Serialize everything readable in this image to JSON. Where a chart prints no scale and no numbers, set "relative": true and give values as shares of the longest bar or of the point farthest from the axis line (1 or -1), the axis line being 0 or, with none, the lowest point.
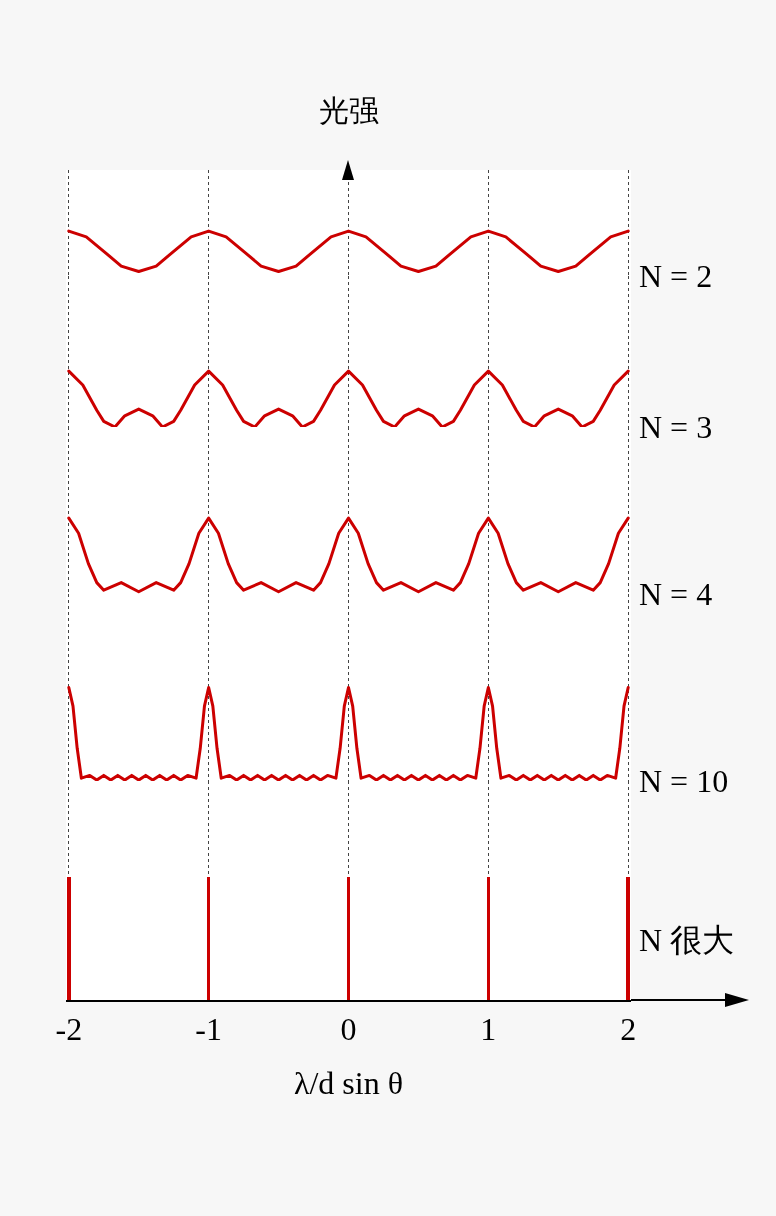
{
  "chart_data": [
    {
      "type": "line",
      "ylabel": "光强",
      "relative": true,
      "xlim": [
        -2.02,
        2.02
      ],
      "xticks": [
        -2,
        -1,
        0,
        1,
        2
      ],
      "grid": "x",
      "tick_labels": false,
      "series": [
        {
          "name": "N = 2",
          "color": "#cc0000",
          "x": [
            -2,
            -1.875,
            -1.75,
            -1.625,
            -1.5,
            -1.375,
            -1.25,
            -1.125,
            -1,
            -0.875,
            -0.75,
            -0.625,
            -0.5,
            -0.375,
            -0.25,
            -0.125,
            0,
            0.125,
            0.25,
            0.375,
            0.5,
            0.625,
            0.75,
            0.875,
            1,
            1.125,
            1.25,
            1.375,
            1.5,
            1.625,
            1.75,
            1.875,
            2
          ],
          "values": [
            1,
            0.87,
            0.55,
            0.22,
            0.1,
            0.22,
            0.55,
            0.87,
            1,
            0.87,
            0.55,
            0.22,
            0.1,
            0.22,
            0.55,
            0.87,
            1,
            0.87,
            0.55,
            0.22,
            0.1,
            0.22,
            0.55,
            0.87,
            1,
            0.87,
            0.55,
            0.22,
            0.1,
            0.22,
            0.55,
            0.87,
            1
          ]
        }
      ]
    },
    {
      "type": "line",
      "relative": true,
      "xlim": [
        -2.02,
        2.02
      ],
      "xticks": [
        -2,
        -1,
        0,
        1,
        2
      ],
      "grid": "x",
      "tick_labels": false,
      "series": [
        {
          "name": "N = 3",
          "color": "#cc0000",
          "x": [
            -2,
            -1.9,
            -1.8,
            -1.75,
            -1.67,
            -1.6,
            -1.5,
            -1.4,
            -1.33,
            -1.25,
            -1.2,
            -1.1,
            -1,
            -0.9,
            -0.8,
            -0.75,
            -0.67,
            -0.6,
            -0.5,
            -0.4,
            -0.33,
            -0.25,
            -0.2,
            -0.1,
            0,
            0.1,
            0.2,
            0.25,
            0.33,
            0.4,
            0.5,
            0.6,
            0.67,
            0.75,
            0.8,
            0.9,
            1,
            1.1,
            1.2,
            1.25,
            1.33,
            1.4,
            1.5,
            1.6,
            1.67,
            1.75,
            1.8,
            1.9,
            2
          ],
          "values": [
            1,
            0.75,
            0.3,
            0.1,
            0,
            0.2,
            0.32,
            0.2,
            0,
            0.1,
            0.3,
            0.75,
            1,
            0.75,
            0.3,
            0.1,
            0,
            0.2,
            0.32,
            0.2,
            0,
            0.1,
            0.3,
            0.75,
            1,
            0.75,
            0.3,
            0.1,
            0,
            0.2,
            0.32,
            0.2,
            0,
            0.1,
            0.3,
            0.75,
            1,
            0.75,
            0.3,
            0.1,
            0,
            0.2,
            0.32,
            0.2,
            0,
            0.1,
            0.3,
            0.75,
            1
          ]
        }
      ]
    },
    {
      "type": "line",
      "relative": true,
      "xlim": [
        -2.02,
        2.02
      ],
      "xticks": [
        -2,
        -1,
        0,
        1,
        2
      ],
      "grid": "x",
      "tick_labels": false,
      "series": [
        {
          "name": "N = 4",
          "color": "#cc0000",
          "x": [
            -2,
            -1.93,
            -1.86,
            -1.8,
            -1.75,
            -1.625,
            -1.5,
            -1.375,
            -1.25,
            -1.2,
            -1.14,
            -1.07,
            -1,
            -0.93,
            -0.86,
            -0.8,
            -0.75,
            -0.625,
            -0.5,
            -0.375,
            -0.25,
            -0.2,
            -0.14,
            -0.07,
            0,
            0.07,
            0.14,
            0.2,
            0.25,
            0.375,
            0.5,
            0.625,
            0.75,
            0.8,
            0.86,
            0.93,
            1,
            1.07,
            1.14,
            1.2,
            1.25,
            1.375,
            1.5,
            1.625,
            1.75,
            1.8,
            1.86,
            1.93,
            2
          ],
          "values": [
            1,
            0.8,
            0.4,
            0.15,
            0.05,
            0.15,
            0.03,
            0.15,
            0.05,
            0.15,
            0.4,
            0.8,
            1,
            0.8,
            0.4,
            0.15,
            0.05,
            0.15,
            0.03,
            0.15,
            0.05,
            0.15,
            0.4,
            0.8,
            1,
            0.8,
            0.4,
            0.15,
            0.05,
            0.15,
            0.03,
            0.15,
            0.05,
            0.15,
            0.4,
            0.8,
            1,
            0.8,
            0.4,
            0.15,
            0.05,
            0.15,
            0.03,
            0.15,
            0.05,
            0.15,
            0.4,
            0.8,
            1
          ]
        }
      ]
    },
    {
      "type": "line",
      "relative": true,
      "xlim": [
        -2.02,
        2.02
      ],
      "xticks": [
        -2,
        -1,
        0,
        1,
        2
      ],
      "grid": "x",
      "tick_labels": false,
      "series": [
        {
          "name": "N = 10",
          "color": "#cc0000",
          "x": [
            -2,
            -1.97,
            -1.94,
            -1.91,
            -1.85,
            -1.8,
            -1.75,
            -1.7,
            -1.65,
            -1.6,
            -1.55,
            -1.5,
            -1.45,
            -1.4,
            -1.35,
            -1.3,
            -1.25,
            -1.2,
            -1.15,
            -1.09,
            -1.06,
            -1.03,
            -1,
            -0.97,
            -0.94,
            -0.91,
            -0.85,
            -0.8,
            -0.75,
            -0.7,
            -0.65,
            -0.6,
            -0.55,
            -0.5,
            -0.45,
            -0.4,
            -0.35,
            -0.3,
            -0.25,
            -0.2,
            -0.15,
            -0.09,
            -0.06,
            -0.03,
            0,
            0.03,
            0.06,
            0.09,
            0.15,
            0.2,
            0.25,
            0.3,
            0.35,
            0.4,
            0.45,
            0.5,
            0.55,
            0.6,
            0.65,
            0.7,
            0.75,
            0.8,
            0.85,
            0.91,
            0.94,
            0.97,
            1,
            1.03,
            1.06,
            1.09,
            1.15,
            1.2,
            1.25,
            1.3,
            1.35,
            1.4,
            1.45,
            1.5,
            1.55,
            1.6,
            1.65,
            1.7,
            1.75,
            1.8,
            1.85,
            1.91,
            1.94,
            1.97,
            2
          ],
          "values": [
            1,
            0.8,
            0.35,
            0.03,
            0.06,
            0.01,
            0.06,
            0.01,
            0.06,
            0.01,
            0.06,
            0.01,
            0.06,
            0.01,
            0.06,
            0.01,
            0.06,
            0.01,
            0.06,
            0.03,
            0.35,
            0.8,
            1,
            0.8,
            0.35,
            0.03,
            0.06,
            0.01,
            0.06,
            0.01,
            0.06,
            0.01,
            0.06,
            0.01,
            0.06,
            0.01,
            0.06,
            0.01,
            0.06,
            0.01,
            0.06,
            0.03,
            0.35,
            0.8,
            1,
            0.8,
            0.35,
            0.03,
            0.06,
            0.01,
            0.06,
            0.01,
            0.06,
            0.01,
            0.06,
            0.01,
            0.06,
            0.01,
            0.06,
            0.01,
            0.06,
            0.01,
            0.06,
            0.03,
            0.35,
            0.8,
            1,
            0.8,
            0.35,
            0.03,
            0.06,
            0.01,
            0.06,
            0.01,
            0.06,
            0.01,
            0.06,
            0.01,
            0.06,
            0.01,
            0.06,
            0.01,
            0.06,
            0.01,
            0.06,
            0.03,
            0.35,
            0.8,
            1
          ]
        }
      ]
    },
    {
      "type": "bar",
      "relative": true,
      "xlabel": "λ/d sin θ",
      "xlim": [
        -2.02,
        2.02
      ],
      "xticks": [
        -2,
        -1,
        0,
        1,
        2
      ],
      "grid": "x",
      "tick_labels": "x",
      "series": [
        {
          "name": "N 很大",
          "color": "#cc0000",
          "x": [
            -2,
            -1,
            0,
            1,
            2
          ],
          "values": [
            1,
            1,
            1,
            1,
            1
          ]
        }
      ]
    }
  ]
}
